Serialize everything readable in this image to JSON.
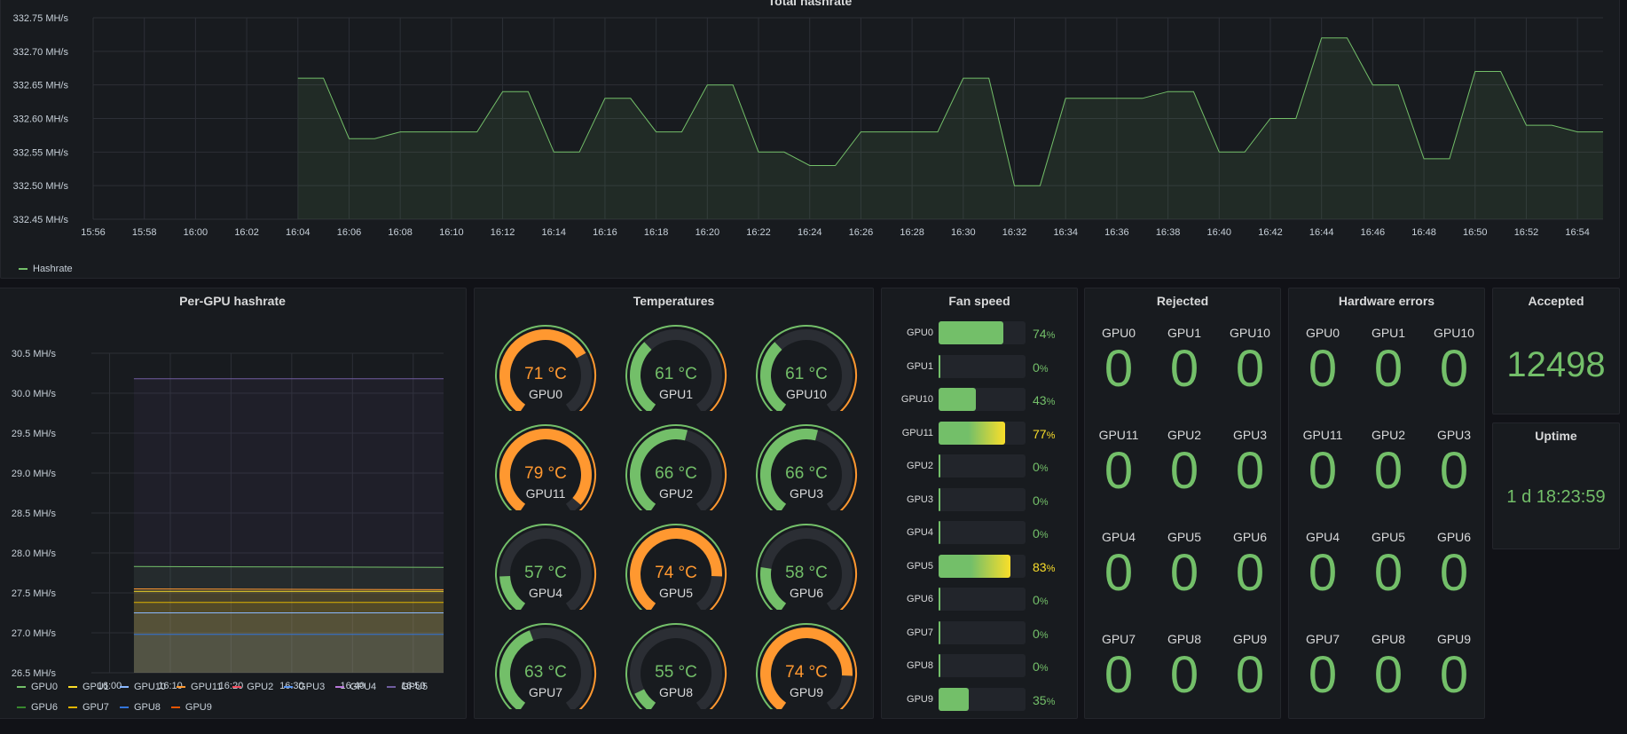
{
  "colors": {
    "green": "#73bf69",
    "orange": "#ff9830",
    "yellow": "#fade2a",
    "blue": "#8ab8ff",
    "purple": "#8f71d8"
  },
  "total": {
    "title": "Total hashrate",
    "y_ticks": [
      "332.75 MH/s",
      "332.70 MH/s",
      "332.65 MH/s",
      "332.60 MH/s",
      "332.55 MH/s",
      "332.50 MH/s",
      "332.45 MH/s"
    ],
    "x_ticks": [
      "15:56",
      "15:58",
      "16:00",
      "16:02",
      "16:04",
      "16:06",
      "16:08",
      "16:10",
      "16:12",
      "16:14",
      "16:16",
      "16:18",
      "16:20",
      "16:22",
      "16:24",
      "16:26",
      "16:28",
      "16:30",
      "16:32",
      "16:34",
      "16:36",
      "16:38",
      "16:40",
      "16:42",
      "16:44",
      "16:46",
      "16:48",
      "16:50",
      "16:52",
      "16:54"
    ],
    "legend": "Hashrate"
  },
  "pergpu": {
    "title": "Per-GPU hashrate",
    "y_ticks": [
      "30.5 MH/s",
      "30.0 MH/s",
      "29.5 MH/s",
      "29.0 MH/s",
      "28.5 MH/s",
      "28.0 MH/s",
      "27.5 MH/s",
      "27.0 MH/s",
      "26.5 MH/s"
    ],
    "x_ticks": [
      "16:00",
      "16:10",
      "16:20",
      "16:30",
      "16:40",
      "16:50"
    ],
    "legend": [
      {
        "name": "GPU0",
        "color": "#73bf69"
      },
      {
        "name": "GPU1",
        "color": "#fade2a"
      },
      {
        "name": "GPU10",
        "color": "#8ab8ff"
      },
      {
        "name": "GPU11",
        "color": "#ff9830"
      },
      {
        "name": "GPU2",
        "color": "#f2495c"
      },
      {
        "name": "GPU3",
        "color": "#5794f2"
      },
      {
        "name": "GPU4",
        "color": "#b877d9"
      },
      {
        "name": "GPU5",
        "color": "#705da0"
      },
      {
        "name": "GPU6",
        "color": "#37872d"
      },
      {
        "name": "GPU7",
        "color": "#e0b400"
      },
      {
        "name": "GPU8",
        "color": "#3274d9"
      },
      {
        "name": "GPU9",
        "color": "#e55400"
      }
    ]
  },
  "temps": {
    "title": "Temperatures",
    "items": [
      {
        "name": "GPU0",
        "value": "71 °C",
        "level": 0.71,
        "color": "#ff9830"
      },
      {
        "name": "GPU1",
        "value": "61 °C",
        "level": 0.35,
        "color": "#73bf69"
      },
      {
        "name": "GPU10",
        "value": "61 °C",
        "level": 0.35,
        "color": "#73bf69"
      },
      {
        "name": "GPU11",
        "value": "79 °C",
        "level": 0.95,
        "color": "#ff9830"
      },
      {
        "name": "GPU2",
        "value": "66 °C",
        "level": 0.55,
        "color": "#73bf69"
      },
      {
        "name": "GPU3",
        "value": "66 °C",
        "level": 0.55,
        "color": "#73bf69"
      },
      {
        "name": "GPU4",
        "value": "57 °C",
        "level": 0.18,
        "color": "#73bf69"
      },
      {
        "name": "GPU5",
        "value": "74 °C",
        "level": 0.82,
        "color": "#ff9830"
      },
      {
        "name": "GPU6",
        "value": "58 °C",
        "level": 0.22,
        "color": "#73bf69"
      },
      {
        "name": "GPU7",
        "value": "63 °C",
        "level": 0.43,
        "color": "#73bf69"
      },
      {
        "name": "GPU8",
        "value": "55 °C",
        "level": 0.1,
        "color": "#73bf69"
      },
      {
        "name": "GPU9",
        "value": "74 °C",
        "level": 0.82,
        "color": "#ff9830"
      }
    ]
  },
  "fans": {
    "title": "Fan speed",
    "items": [
      {
        "name": "GPU0",
        "value": "74",
        "pct": 74
      },
      {
        "name": "GPU1",
        "value": "0",
        "pct": 0
      },
      {
        "name": "GPU10",
        "value": "43",
        "pct": 43
      },
      {
        "name": "GPU11",
        "value": "77",
        "pct": 77
      },
      {
        "name": "GPU2",
        "value": "0",
        "pct": 0
      },
      {
        "name": "GPU3",
        "value": "0",
        "pct": 0
      },
      {
        "name": "GPU4",
        "value": "0",
        "pct": 0
      },
      {
        "name": "GPU5",
        "value": "83",
        "pct": 83
      },
      {
        "name": "GPU6",
        "value": "0",
        "pct": 0
      },
      {
        "name": "GPU7",
        "value": "0",
        "pct": 0
      },
      {
        "name": "GPU8",
        "value": "0",
        "pct": 0
      },
      {
        "name": "GPU9",
        "value": "35",
        "pct": 35
      }
    ],
    "unit": "%"
  },
  "rejected": {
    "title": "Rejected",
    "items": [
      {
        "name": "GPU0",
        "value": "0"
      },
      {
        "name": "GPU1",
        "value": "0"
      },
      {
        "name": "GPU10",
        "value": "0"
      },
      {
        "name": "GPU11",
        "value": "0"
      },
      {
        "name": "GPU2",
        "value": "0"
      },
      {
        "name": "GPU3",
        "value": "0"
      },
      {
        "name": "GPU4",
        "value": "0"
      },
      {
        "name": "GPU5",
        "value": "0"
      },
      {
        "name": "GPU6",
        "value": "0"
      },
      {
        "name": "GPU7",
        "value": "0"
      },
      {
        "name": "GPU8",
        "value": "0"
      },
      {
        "name": "GPU9",
        "value": "0"
      }
    ]
  },
  "hwerrors": {
    "title": "Hardware errors",
    "items": [
      {
        "name": "GPU0",
        "value": "0"
      },
      {
        "name": "GPU1",
        "value": "0"
      },
      {
        "name": "GPU10",
        "value": "0"
      },
      {
        "name": "GPU11",
        "value": "0"
      },
      {
        "name": "GPU2",
        "value": "0"
      },
      {
        "name": "GPU3",
        "value": "0"
      },
      {
        "name": "GPU4",
        "value": "0"
      },
      {
        "name": "GPU5",
        "value": "0"
      },
      {
        "name": "GPU6",
        "value": "0"
      },
      {
        "name": "GPU7",
        "value": "0"
      },
      {
        "name": "GPU8",
        "value": "0"
      },
      {
        "name": "GPU9",
        "value": "0"
      }
    ]
  },
  "accepted": {
    "title": "Accepted",
    "value": "12498"
  },
  "uptime": {
    "title": "Uptime",
    "value": "1 d 18:23:59"
  },
  "chart_data": [
    {
      "type": "area",
      "title": "Total hashrate",
      "x": [
        "16:04",
        "16:05",
        "16:06",
        "16:07",
        "16:08",
        "16:09",
        "16:10",
        "16:11",
        "16:12",
        "16:13",
        "16:14",
        "16:15",
        "16:16",
        "16:17",
        "16:18",
        "16:19",
        "16:20",
        "16:21",
        "16:22",
        "16:23",
        "16:24",
        "16:25",
        "16:26",
        "16:27",
        "16:28",
        "16:29",
        "16:30",
        "16:31",
        "16:32",
        "16:33",
        "16:34",
        "16:35",
        "16:36",
        "16:37",
        "16:38",
        "16:39",
        "16:40",
        "16:41",
        "16:42",
        "16:43",
        "16:44",
        "16:45",
        "16:46",
        "16:47",
        "16:48",
        "16:49",
        "16:50",
        "16:51",
        "16:52",
        "16:53",
        "16:54",
        "16:55"
      ],
      "series": [
        {
          "name": "Hashrate",
          "values": [
            332.66,
            332.66,
            332.57,
            332.57,
            332.58,
            332.58,
            332.58,
            332.58,
            332.64,
            332.64,
            332.55,
            332.55,
            332.63,
            332.63,
            332.58,
            332.58,
            332.65,
            332.65,
            332.55,
            332.55,
            332.53,
            332.53,
            332.58,
            332.58,
            332.58,
            332.58,
            332.66,
            332.66,
            332.5,
            332.5,
            332.63,
            332.63,
            332.63,
            332.63,
            332.64,
            332.64,
            332.55,
            332.55,
            332.6,
            332.6,
            332.72,
            332.72,
            332.65,
            332.65,
            332.54,
            332.54,
            332.67,
            332.67,
            332.59,
            332.59,
            332.58,
            332.58
          ]
        }
      ],
      "xlim": [
        "15:56",
        "16:55"
      ],
      "ylim": [
        332.45,
        332.75
      ]
    },
    {
      "type": "area",
      "title": "Per-GPU hashrate",
      "x": [
        "16:04",
        "16:55"
      ],
      "series": [
        {
          "name": "GPU5",
          "values": [
            30.18,
            30.18
          ]
        },
        {
          "name": "GPU0",
          "values": [
            27.83,
            27.82
          ]
        },
        {
          "name": "GPU11",
          "values": [
            27.55,
            27.54
          ]
        },
        {
          "name": "GPU1",
          "values": [
            27.52,
            27.52
          ]
        },
        {
          "name": "GPU7",
          "values": [
            27.38,
            27.38
          ]
        },
        {
          "name": "GPU10",
          "values": [
            27.25,
            27.25
          ]
        },
        {
          "name": "GPU8",
          "values": [
            26.98,
            26.98
          ]
        }
      ],
      "ylim": [
        26.5,
        30.5
      ]
    }
  ]
}
